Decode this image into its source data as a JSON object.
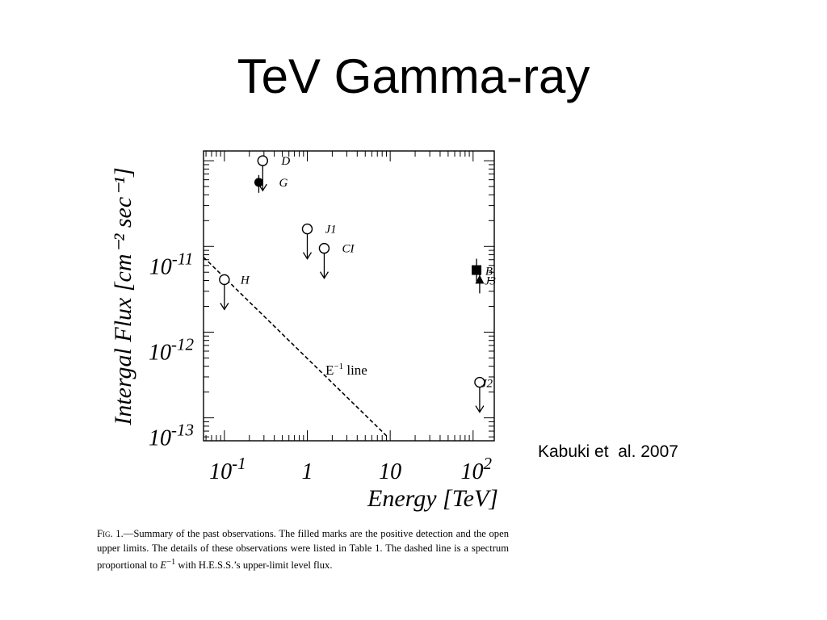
{
  "slide": {
    "title": "TeV Gamma-ray",
    "citation_author": "Kabuki et",
    "citation_rest": "al. 2007"
  },
  "chart_data": {
    "type": "scatter",
    "xlabel": "Energy [TeV]",
    "ylabel": "Intergal Flux [cm⁻² sec⁻¹]",
    "x_scale": "log",
    "y_scale": "log",
    "xlim": [
      0.056,
      180
    ],
    "ylim": [
      5.4e-14,
      1.3e-10
    ],
    "x_ticks": [
      {
        "value": 0.1,
        "base": "10",
        "exp": "-1"
      },
      {
        "value": 1,
        "base": "1",
        "exp": ""
      },
      {
        "value": 10,
        "base": "10",
        "exp": ""
      },
      {
        "value": 100,
        "base": "10",
        "exp": "2"
      }
    ],
    "y_ticks": [
      {
        "value": 1e-11,
        "base": "10",
        "exp": "-11"
      },
      {
        "value": 1e-12,
        "base": "10",
        "exp": "-12"
      },
      {
        "value": 1e-13,
        "base": "10",
        "exp": "-13"
      }
    ],
    "points": [
      {
        "label": "D",
        "x": 0.29,
        "y": 1e-10,
        "marker": "open-circle",
        "upper_limit": true
      },
      {
        "label": "G",
        "x": 0.26,
        "y": 5.6e-11,
        "marker": "filled-circle",
        "upper_limit": false
      },
      {
        "label": "J1",
        "x": 1.0,
        "y": 1.6e-11,
        "marker": "open-circle",
        "upper_limit": true
      },
      {
        "label": "CI",
        "x": 1.6,
        "y": 9.5e-12,
        "marker": "open-circle",
        "upper_limit": true
      },
      {
        "label": "H",
        "x": 0.1,
        "y": 4.1e-12,
        "marker": "open-circle",
        "upper_limit": true
      },
      {
        "label": "B",
        "x": 110,
        "y": 5.3e-12,
        "marker": "filled-square",
        "upper_limit": false
      },
      {
        "label": "J3",
        "x": 120,
        "y": 4.1e-12,
        "marker": "filled-triangle",
        "upper_limit": false
      },
      {
        "label": "J2",
        "x": 120,
        "y": 2.6e-13,
        "marker": "open-circle",
        "upper_limit": true
      }
    ],
    "reference_line": {
      "label_base": "E",
      "label_exp": "−1",
      "label_suffix": " line",
      "style": "dashed",
      "x": [
        0.056,
        9.3
      ],
      "y": [
        7.5e-12,
        6e-14
      ]
    },
    "grid": false
  },
  "caption": {
    "fig_label": "Fig. 1.",
    "text_a": "—Summary of the past observations. The filled marks are the positive detection and the open upper limits. The details of these observations were listed in Table 1. The dashed line is a spectrum proportional to ",
    "math": "E",
    "math_exp": "−1",
    "text_b": " with H.E.S.S.’s upper-limit level flux."
  }
}
